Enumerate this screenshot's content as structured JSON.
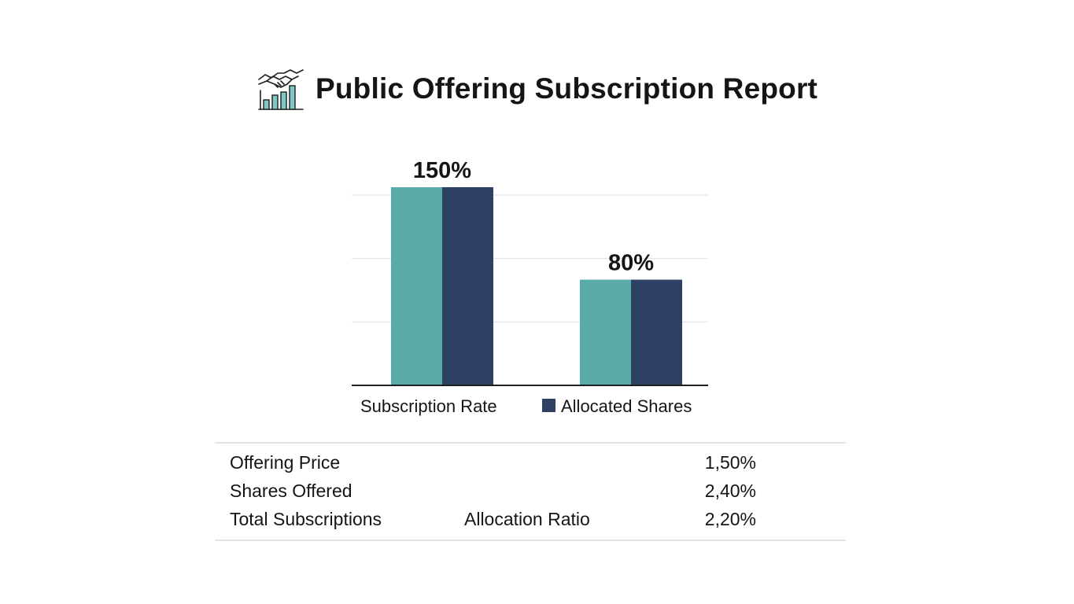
{
  "header": {
    "title": "Public Offering Subscription Report",
    "icon": "handshake-chart-icon"
  },
  "chart_data": {
    "type": "bar",
    "categories": [
      "",
      ""
    ],
    "series": [
      {
        "name": "Subscription Rate",
        "color": "#5aabaa",
        "values": [
          150,
          80
        ]
      },
      {
        "name": "Allocated Shares",
        "color": "#2e4164",
        "values": [
          150,
          80
        ]
      }
    ],
    "data_labels": [
      "150%",
      "80%"
    ],
    "ylim": [
      0,
      150
    ],
    "grid": true,
    "legend": "bottom",
    "xlabel": "",
    "ylabel": ""
  },
  "summary": {
    "rows": [
      {
        "label": "Offering Price",
        "middle": "",
        "value": "1,50%"
      },
      {
        "label": "Shares Offered",
        "middle": "",
        "value": "2,40%"
      },
      {
        "label": "Total Subscriptions",
        "middle": "Allocation Ratio",
        "value": "2,20%"
      }
    ]
  }
}
